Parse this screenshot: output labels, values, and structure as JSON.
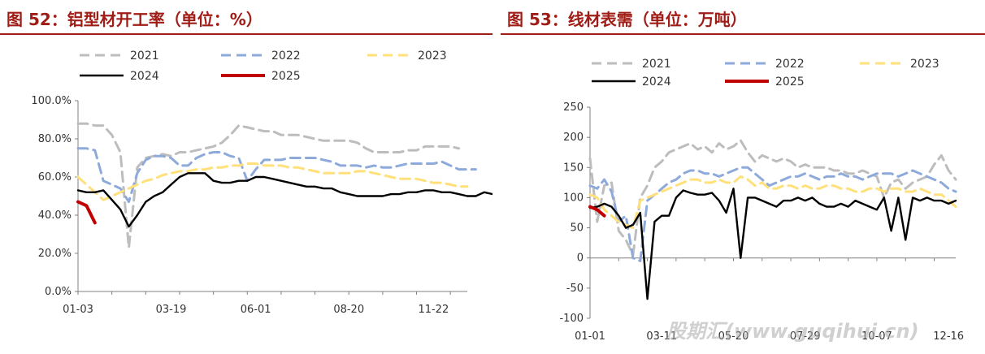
{
  "titles": {
    "left": "图 52：铝型材开工率（单位：%）",
    "right": "图 53：线材表需（单位：万吨）"
  },
  "watermark": "股期汇(www.guqihui.cn)",
  "colors": {
    "2021": "#bdbdbd",
    "2022": "#8eaadb",
    "2023": "#ffe07a",
    "2024": "#000000",
    "2025": "#c00000",
    "accent": "#a01c16"
  },
  "chart_data": [
    {
      "type": "line",
      "title": "图 52：铝型材开工率（单位：%）",
      "xlabel": "",
      "ylabel": "",
      "ylim": [
        0,
        100
      ],
      "yticks": [
        "0.0%",
        "20.0%",
        "40.0%",
        "60.0%",
        "80.0%",
        "100.0%"
      ],
      "x_ticks": [
        "01-03",
        "03-19",
        "06-01",
        "08-20",
        "11-22"
      ],
      "x_tick_weeks": [
        0,
        11,
        21,
        32,
        42
      ],
      "week_range": [
        0,
        46
      ],
      "legend": "top",
      "series": [
        {
          "name": "2021",
          "values": [
            88,
            88,
            87,
            87,
            82,
            73,
            23,
            65,
            70,
            71,
            72,
            71,
            73,
            73,
            74,
            75,
            76,
            78,
            82,
            87,
            86,
            85,
            84,
            84,
            82,
            82,
            82,
            81,
            80,
            79,
            79,
            79,
            79,
            78,
            75,
            73,
            73,
            73,
            73,
            74,
            74,
            76,
            76,
            76,
            76,
            75
          ]
        },
        {
          "name": "2022",
          "values": [
            75,
            75,
            74,
            58,
            56,
            54,
            47,
            62,
            69,
            71,
            71,
            70,
            66,
            66,
            70,
            72,
            73,
            73,
            71,
            70,
            58,
            64,
            69,
            69,
            69,
            70,
            70,
            70,
            70,
            69,
            68,
            66,
            66,
            66,
            65,
            66,
            65,
            65,
            66,
            67,
            67,
            67,
            67,
            68,
            66,
            64,
            64,
            64
          ]
        },
        {
          "name": "2023",
          "values": [
            60,
            56,
            52,
            48,
            50,
            52,
            54,
            56,
            58,
            59,
            61,
            62,
            63,
            63,
            64,
            64,
            65,
            65,
            66,
            66,
            67,
            67,
            66,
            66,
            66,
            65,
            65,
            64,
            63,
            62,
            62,
            62,
            62,
            63,
            63,
            62,
            61,
            60,
            59,
            59,
            59,
            58,
            57,
            57,
            56,
            55,
            55
          ]
        },
        {
          "name": "2024",
          "values": [
            53,
            52,
            52,
            53,
            48,
            43,
            34,
            40,
            47,
            50,
            52,
            56,
            60,
            62,
            62,
            62,
            58,
            57,
            57,
            58,
            58,
            60,
            60,
            59,
            58,
            57,
            56,
            55,
            55,
            54,
            54,
            52,
            51,
            50,
            50,
            50,
            50,
            51,
            51,
            52,
            52,
            53,
            53,
            52,
            52,
            51,
            50,
            50,
            52,
            51,
            49,
            48,
            47
          ]
        },
        {
          "name": "2025",
          "values": [
            47,
            45,
            36
          ]
        }
      ]
    },
    {
      "type": "line",
      "title": "图 53：线材表需（单位：万吨）",
      "xlabel": "",
      "ylabel": "",
      "ylim": [
        -100,
        250
      ],
      "yticks": [
        "-100",
        "-50",
        "0",
        "50",
        "100",
        "150",
        "200",
        "250"
      ],
      "x_ticks": [
        "01-01",
        "03-11",
        "05-20",
        "07-29",
        "10-07",
        "12-16"
      ],
      "x_tick_weeks": [
        0,
        10,
        20,
        30,
        40,
        50
      ],
      "week_range": [
        0,
        51
      ],
      "legend": "top",
      "series": [
        {
          "name": "2021",
          "values": [
            165,
            60,
            120,
            125,
            45,
            30,
            5,
            100,
            120,
            150,
            160,
            175,
            180,
            185,
            190,
            180,
            185,
            175,
            190,
            180,
            185,
            195,
            175,
            160,
            170,
            165,
            160,
            165,
            160,
            150,
            155,
            150,
            150,
            150,
            145,
            145,
            140,
            140,
            145,
            140,
            135,
            100,
            125,
            130,
            115,
            125,
            130,
            135,
            155,
            170,
            145,
            130
          ]
        },
        {
          "name": "2022",
          "values": [
            120,
            115,
            130,
            110,
            60,
            70,
            0,
            -5,
            95,
            105,
            115,
            125,
            130,
            140,
            145,
            145,
            140,
            140,
            135,
            140,
            145,
            150,
            150,
            140,
            130,
            120,
            125,
            130,
            135,
            135,
            140,
            135,
            130,
            135,
            135,
            140,
            135,
            135,
            130,
            135,
            140,
            140,
            140,
            135,
            140,
            145,
            140,
            135,
            130,
            125,
            115,
            110
          ]
        },
        {
          "name": "2023",
          "values": [
            105,
            100,
            80,
            70,
            60,
            55,
            50,
            95,
            100,
            105,
            110,
            115,
            120,
            125,
            130,
            130,
            125,
            125,
            130,
            125,
            125,
            135,
            130,
            120,
            125,
            115,
            115,
            120,
            120,
            115,
            120,
            115,
            115,
            120,
            120,
            115,
            115,
            110,
            110,
            115,
            115,
            110,
            115,
            115,
            110,
            110,
            115,
            110,
            105,
            105,
            95,
            85
          ]
        },
        {
          "name": "2024",
          "values": [
            83,
            85,
            90,
            85,
            70,
            50,
            55,
            75,
            -68,
            60,
            70,
            70,
            100,
            112,
            108,
            105,
            105,
            108,
            95,
            75,
            115,
            0,
            100,
            100,
            95,
            90,
            85,
            95,
            95,
            100,
            95,
            100,
            90,
            85,
            85,
            90,
            85,
            95,
            90,
            85,
            80,
            100,
            45,
            100,
            30,
            100,
            95,
            100,
            95,
            95,
            90,
            95
          ]
        },
        {
          "name": "2025",
          "values": [
            85,
            80,
            70
          ]
        }
      ]
    }
  ]
}
